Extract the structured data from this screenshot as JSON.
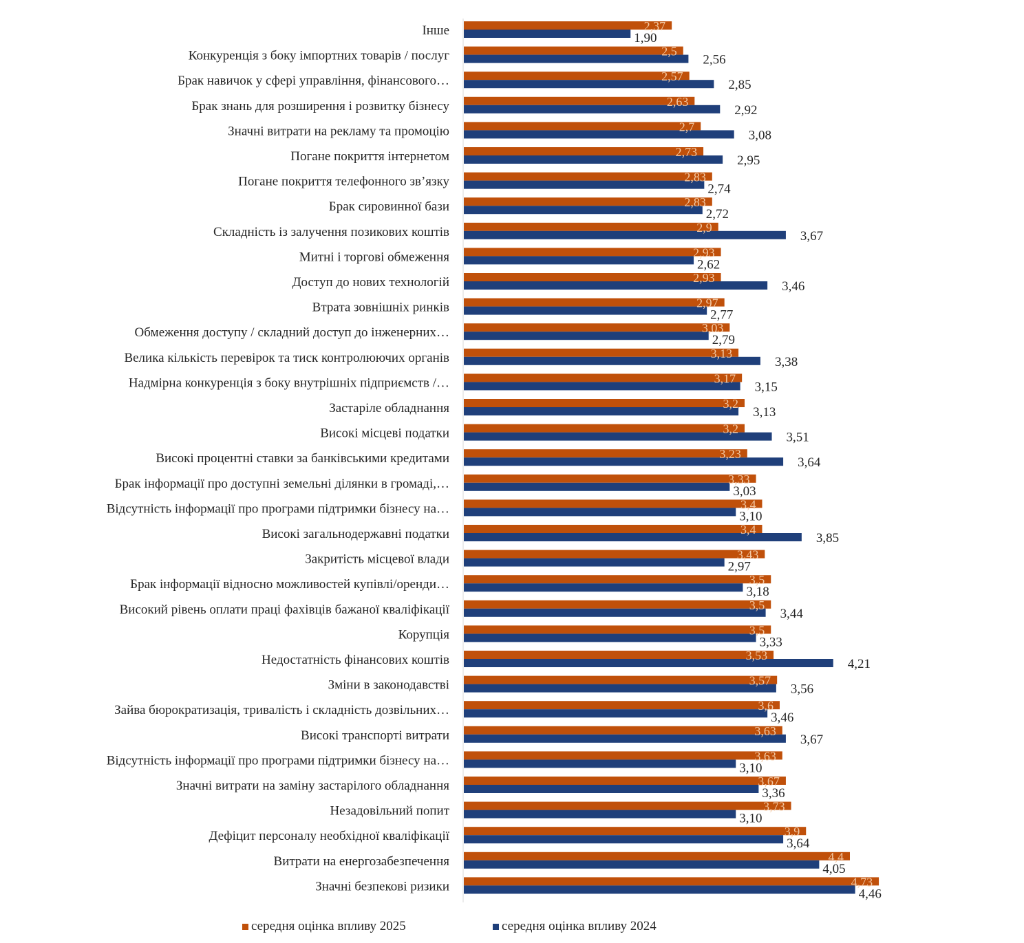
{
  "chart_data": {
    "type": "bar",
    "orientation": "horizontal",
    "title": "",
    "xlabel": "",
    "ylabel": "",
    "xlim": [
      0,
      5
    ],
    "grid": false,
    "legend_position": "bottom",
    "categories": [
      "Інше",
      "Конкуренція з боку імпортних товарів / послуг",
      "Брак навичок у сфері управління, фінансового…",
      "Брак знань для розширення і розвитку бізнесу",
      "Значні витрати на рекламу та промоцію",
      "Погане покриття інтернетом",
      "Погане покриття телефонного зв’язку",
      "Брак сировинної бази",
      "Складність із залучення позикових коштів",
      "Митні і торгові обмеження",
      "Доступ до нових технологій",
      "Втрата зовнішніх ринків",
      "Обмеження доступу / складний доступ до інженерних…",
      "Велика кількість перевірок та тиск контролюючих органів",
      "Надмірна конкуренція з боку внутрішніх підприємств /…",
      "Застаріле обладнання",
      "Високі місцеві податки",
      "Високі процентні ставки за банківськими кредитами",
      "Брак інформації про доступні земельні ділянки в громаді,…",
      "Відсутність інформації про програми підтримки бізнесу на…",
      "Високі загальнодержавні податки",
      "Закритість місцевої влади",
      "Брак інформації відносно можливостей купівлі/оренди…",
      "Високий рівень оплати праці фахівців бажаної кваліфікації",
      "Корупція",
      "Недостатність фінансових коштів",
      "Зміни в законодавстві",
      "Зайва бюрократизація, тривалість і складність дозвільних…",
      "Високі транспорті витрати",
      "Відсутність інформації про програми підтримки бізнесу на…",
      "Значні витрати на заміну застарілого обладнання",
      "Незадовільний попит",
      "Дефіцит персоналу необхідної кваліфікації",
      "Витрати на енергозабезпечення",
      "Значні безпекові ризики"
    ],
    "series": [
      {
        "name": "середня оцінка впливу 2025",
        "color": "#c0500a",
        "values": [
          2.37,
          2.5,
          2.57,
          2.63,
          2.7,
          2.73,
          2.83,
          2.83,
          2.9,
          2.93,
          2.93,
          2.97,
          3.03,
          3.13,
          3.17,
          3.2,
          3.2,
          3.23,
          3.33,
          3.4,
          3.4,
          3.43,
          3.5,
          3.5,
          3.5,
          3.53,
          3.57,
          3.6,
          3.63,
          3.63,
          3.67,
          3.73,
          3.9,
          4.4,
          4.73
        ],
        "labels": [
          "2,37",
          "2,5",
          "2,57",
          "2,63",
          "2,7",
          "2,73",
          "2,83",
          "2,83",
          "2,9",
          "2,93",
          "2,93",
          "2,97",
          "3,03",
          "3,13",
          "3,17",
          "3,2",
          "3,2",
          "3,23",
          "3,33",
          "3,4",
          "3,4",
          "3,43",
          "3,5",
          "3,5",
          "3,5",
          "3,53",
          "3,57",
          "3,6",
          "3,63",
          "3,63",
          "3,67",
          "3,73",
          "3,9",
          "4,4",
          "4,73"
        ]
      },
      {
        "name": "середня оцінка впливу 2024",
        "color": "#1f3f7a",
        "values": [
          1.9,
          2.56,
          2.85,
          2.92,
          3.08,
          2.95,
          2.74,
          2.72,
          3.67,
          2.62,
          3.46,
          2.77,
          2.79,
          3.38,
          3.15,
          3.13,
          3.51,
          3.64,
          3.03,
          3.1,
          3.85,
          2.97,
          3.18,
          3.44,
          3.33,
          4.21,
          3.56,
          3.46,
          3.67,
          3.1,
          3.36,
          3.1,
          3.64,
          4.05,
          4.46
        ],
        "labels": [
          "1,90",
          "2,56",
          "2,85",
          "2,92",
          "3,08",
          "2,95",
          "2,74",
          "2,72",
          "3,67",
          "2,62",
          "3,46",
          "2,77",
          "2,79",
          "3,38",
          "3,15",
          "3,13",
          "3,51",
          "3,64",
          "3,03",
          "3,10",
          "3,85",
          "2,97",
          "3,18",
          "3,44",
          "3,33",
          "4,21",
          "3,56",
          "3,46",
          "3,67",
          "3,10",
          "3,36",
          "3,10",
          "3,64",
          "4,05",
          "4,46"
        ]
      }
    ]
  }
}
